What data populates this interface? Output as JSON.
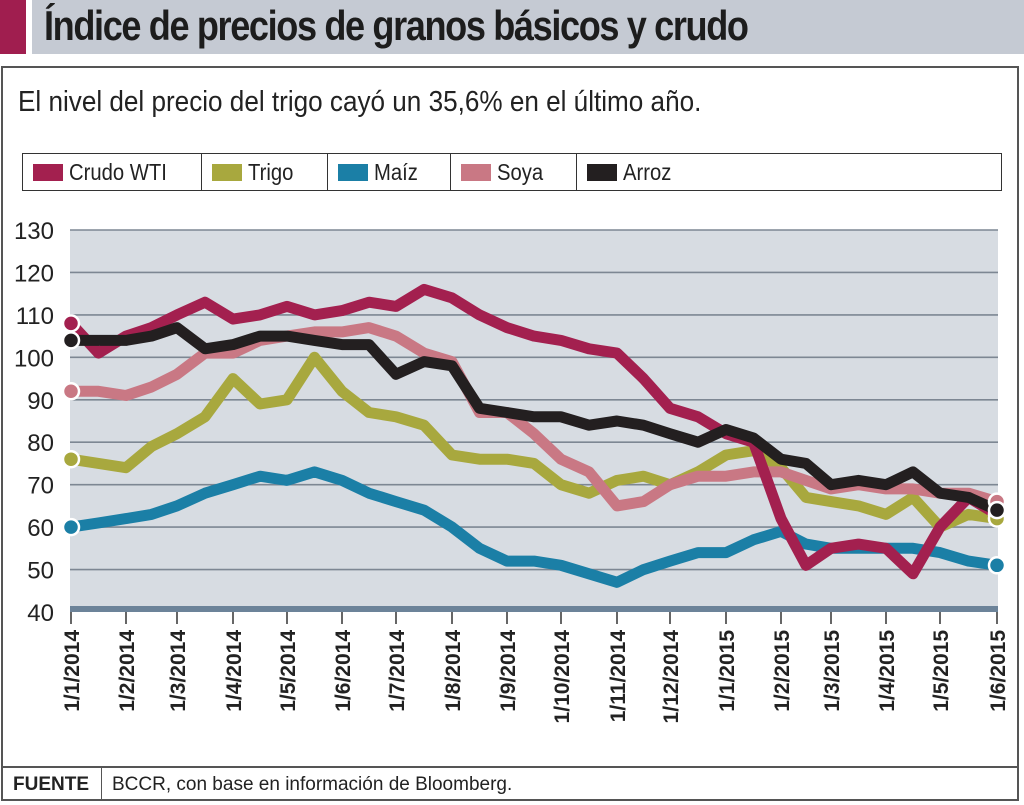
{
  "header": {
    "title": "Índice de precios de granos básicos y crudo",
    "accent_color": "#a01e4f",
    "band_color": "#c5cad3"
  },
  "subtitle": "El nivel del precio del trigo cayó un 35,6% en el último año.",
  "legend": [
    {
      "label": "Crudo WTI",
      "color": "#a3204f"
    },
    {
      "label": "Trigo",
      "color": "#a8a83e"
    },
    {
      "label": "Maíz",
      "color": "#1b7fa6"
    },
    {
      "label": "Soya",
      "color": "#c97884"
    },
    {
      "label": "Arroz",
      "color": "#231f20"
    }
  ],
  "footer": {
    "label": "FUENTE",
    "text": "BCCR, con base en información de Bloomberg."
  },
  "chart_data": {
    "type": "line",
    "title": "Índice de precios de granos básicos y crudo",
    "subtitle": "El nivel del precio del trigo cayó un 35,6% en el último año.",
    "xlabel": "",
    "ylabel": "",
    "ylim": [
      40,
      130
    ],
    "yticks": [
      130,
      120,
      110,
      100,
      90,
      80,
      70,
      60,
      50,
      40
    ],
    "grid": true,
    "legend_position": "top",
    "x_tick_labels": [
      "1/1/2014",
      "1/2/2014",
      "1/3/2014",
      "1/4/2014",
      "1/5/2014",
      "1/6/2014",
      "1/7/2014",
      "1/8/2014",
      "1/9/2014",
      "1/10/2014",
      "1/11/2014",
      "1/12/2014",
      "1/1/2015",
      "1/2/2015",
      "1/3/2015",
      "1/4/2015",
      "1/5/2015",
      "1/6/2015"
    ],
    "x_months": [
      0,
      1,
      2,
      3,
      4,
      5,
      6,
      7,
      8,
      9,
      10,
      11,
      12,
      13,
      14,
      15,
      16,
      17
    ],
    "x_unit": "months since 1/1/2014 (half-month steps)",
    "x": [
      0,
      0.5,
      1,
      1.5,
      2,
      2.5,
      3,
      3.5,
      4,
      4.5,
      5,
      5.5,
      6,
      6.5,
      7,
      7.5,
      8,
      8.5,
      9,
      9.5,
      10,
      10.5,
      11,
      11.5,
      12,
      12.5,
      13,
      13.5,
      14,
      14.5,
      15,
      15.5,
      16,
      16.5,
      17
    ],
    "series": [
      {
        "name": "Crudo WTI",
        "color": "#a3204f",
        "values": [
          108,
          101,
          105,
          107,
          110,
          113,
          109,
          110,
          112,
          110,
          111,
          113,
          112,
          116,
          114,
          110,
          107,
          105,
          104,
          102,
          101,
          95,
          88,
          86,
          82,
          80,
          62,
          51,
          55,
          56,
          55,
          49,
          60,
          67,
          63
        ]
      },
      {
        "name": "Trigo",
        "color": "#a8a83e",
        "values": [
          76,
          75,
          74,
          79,
          82,
          86,
          95,
          89,
          90,
          100,
          92,
          87,
          86,
          84,
          77,
          76,
          76,
          75,
          70,
          68,
          71,
          72,
          70,
          73,
          77,
          78,
          74,
          67,
          66,
          65,
          63,
          67,
          60,
          63,
          62
        ]
      },
      {
        "name": "Maíz",
        "color": "#1b7fa6",
        "values": [
          60,
          61,
          62,
          63,
          65,
          68,
          70,
          72,
          71,
          73,
          71,
          68,
          66,
          64,
          60,
          55,
          52,
          52,
          51,
          49,
          47,
          50,
          52,
          54,
          54,
          57,
          59,
          56,
          55,
          55,
          55,
          55,
          54,
          52,
          51
        ]
      },
      {
        "name": "Soya",
        "color": "#c97884",
        "values": [
          92,
          92,
          91,
          93,
          96,
          101,
          101,
          104,
          105,
          106,
          106,
          107,
          105,
          101,
          99,
          87,
          87,
          82,
          76,
          73,
          65,
          66,
          70,
          72,
          72,
          73,
          73,
          71,
          69,
          70,
          69,
          69,
          68,
          68,
          66
        ]
      },
      {
        "name": "Arroz",
        "color": "#231f20",
        "values": [
          104,
          104,
          104,
          105,
          107,
          102,
          103,
          105,
          105,
          104,
          103,
          103,
          96,
          99,
          98,
          88,
          87,
          86,
          86,
          84,
          85,
          84,
          82,
          80,
          83,
          81,
          76,
          75,
          70,
          71,
          70,
          73,
          68,
          67,
          64
        ]
      }
    ]
  }
}
